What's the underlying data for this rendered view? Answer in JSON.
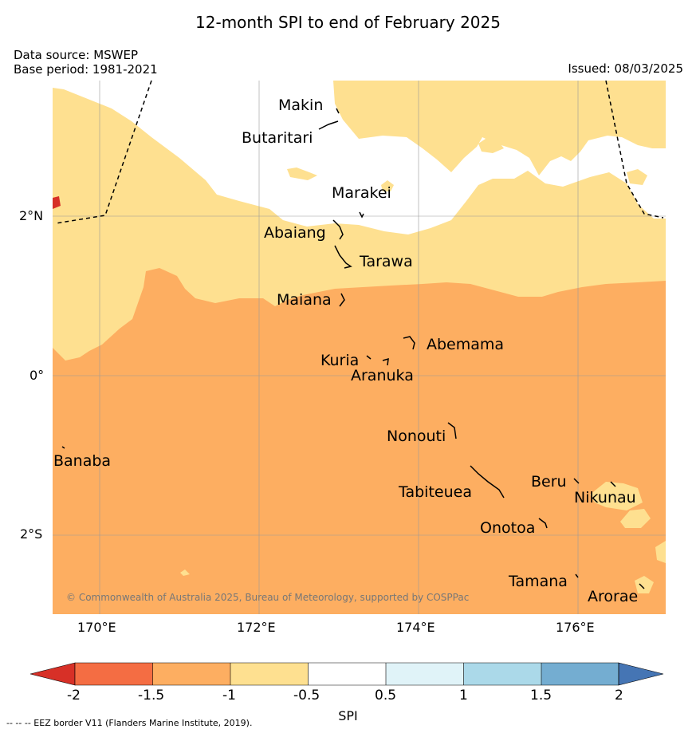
{
  "title": "12-month SPI to end of February 2025",
  "data_source": "Data source: MSWEP",
  "base_period": "Base period: 1981-2021",
  "issued": "Issued: 08/03/2025",
  "copyright": "© Commonwealth of Australia 2025, Bureau of Meteorology, supported by COSPPac",
  "eez_note": "--  --  -- EEZ border V11 (Flanders Marine Institute, 2019).",
  "axes": {
    "lon_ticks": [
      "170°E",
      "172°E",
      "174°E",
      "176°E"
    ],
    "lat_ticks": [
      "2°N",
      "0°",
      "2°S"
    ]
  },
  "places": [
    {
      "id": "makin",
      "name": "Makin"
    },
    {
      "id": "butaritari",
      "name": "Butaritari"
    },
    {
      "id": "marakei",
      "name": "Marakei"
    },
    {
      "id": "abaiang",
      "name": "Abaiang"
    },
    {
      "id": "tarawa",
      "name": "Tarawa"
    },
    {
      "id": "maiana",
      "name": "Maiana"
    },
    {
      "id": "abemama",
      "name": "Abemama"
    },
    {
      "id": "kuria",
      "name": "Kuria"
    },
    {
      "id": "aranuka",
      "name": "Aranuka"
    },
    {
      "id": "nonouti",
      "name": "Nonouti"
    },
    {
      "id": "banaba",
      "name": "Banaba"
    },
    {
      "id": "beru",
      "name": "Beru"
    },
    {
      "id": "tabiteuea",
      "name": "Tabiteuea"
    },
    {
      "id": "nikunau",
      "name": "Nikunau"
    },
    {
      "id": "onotoa",
      "name": "Onotoa"
    },
    {
      "id": "tamana",
      "name": "Tamana"
    },
    {
      "id": "arorae",
      "name": "Arorae"
    }
  ],
  "colorbar": {
    "label": "SPI",
    "ticks": [
      "-2",
      "-1.5",
      "-1",
      "-0.5",
      "0.5",
      "1",
      "1.5",
      "2"
    ],
    "colors": {
      "below_-2": "#d73027",
      "-2_to_-1.5": "#f46d43",
      "-1.5_to_-1": "#fdae61",
      "-1_to_-0.5": "#fee090",
      "-0.5_to_0.5": "#ffffff",
      "0.5_to_1": "#e0f3f8",
      "1_to_1.5": "#abd9e9",
      "1.5_to_2": "#74add1",
      "above_2": "#4575b4"
    }
  }
}
